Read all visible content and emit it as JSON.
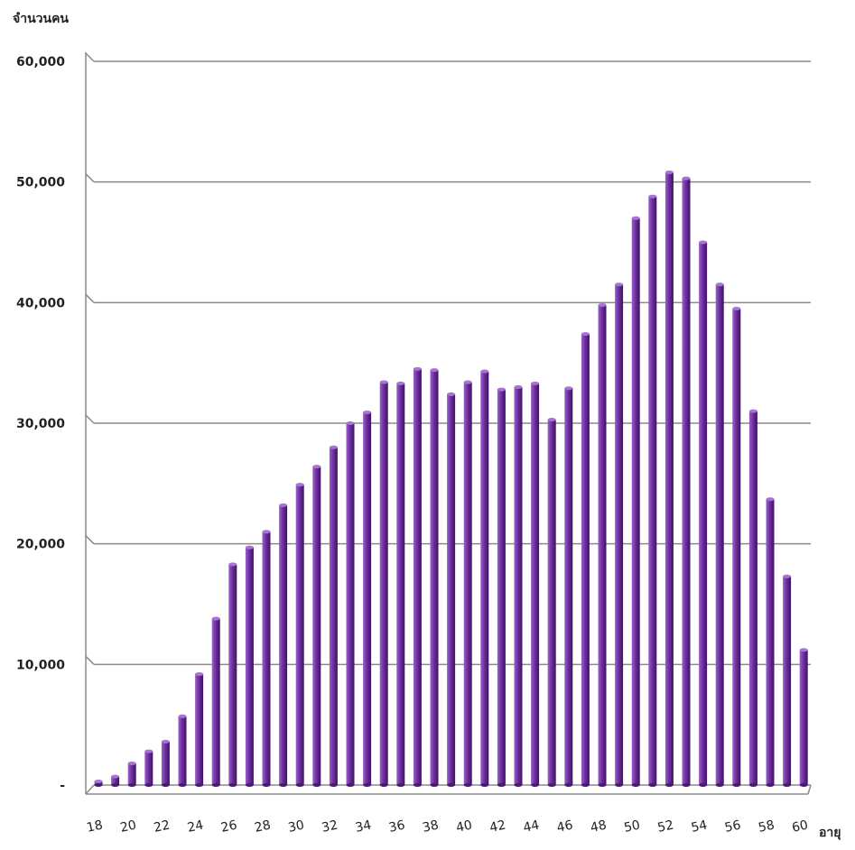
{
  "chart_data": {
    "type": "bar",
    "ylabel": "จำนวนคน",
    "xlabel": "อายุ",
    "ylim": [
      0,
      60000
    ],
    "yticks": [
      "-",
      "10,000",
      "20,000",
      "30,000",
      "40,000",
      "50,000",
      "60,000"
    ],
    "xticks": [
      "18",
      "20",
      "22",
      "24",
      "26",
      "28",
      "30",
      "32",
      "34",
      "36",
      "38",
      "40",
      "42",
      "44",
      "46",
      "48",
      "50",
      "52",
      "54",
      "56",
      "58",
      "60"
    ],
    "grid": true,
    "bar_color": "#7030a0",
    "categories": [
      18,
      19,
      20,
      21,
      22,
      23,
      24,
      25,
      26,
      27,
      28,
      29,
      30,
      31,
      32,
      33,
      34,
      35,
      36,
      37,
      38,
      39,
      40,
      41,
      42,
      43,
      44,
      45,
      46,
      47,
      48,
      49,
      50,
      51,
      52,
      53,
      54,
      55,
      56,
      57,
      58,
      59,
      60
    ],
    "values": [
      300,
      700,
      1800,
      2800,
      3600,
      5700,
      9200,
      13800,
      18300,
      19700,
      21000,
      23200,
      24900,
      26400,
      28000,
      30000,
      30900,
      33400,
      33300,
      34500,
      34400,
      32400,
      33400,
      34300,
      32800,
      33000,
      33300,
      30300,
      32900,
      37400,
      39800,
      41500,
      47000,
      48800,
      50800,
      50300,
      45000,
      41500,
      39500,
      31000,
      23700,
      17300,
      11200
    ]
  }
}
